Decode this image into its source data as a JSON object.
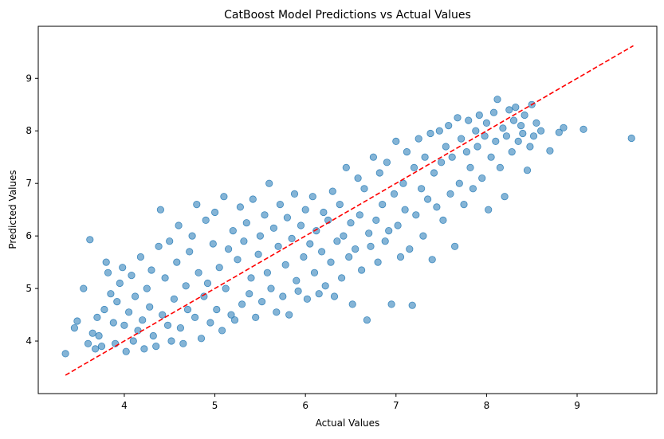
{
  "chart_data": {
    "type": "scatter",
    "title": "CatBoost Model Predictions vs Actual Values",
    "xlabel": "Actual Values",
    "ylabel": "Predicted Values",
    "xlim": [
      3.05,
      9.88
    ],
    "ylim": [
      3.0,
      9.99
    ],
    "xticks": [
      4,
      5,
      6,
      7,
      8,
      9
    ],
    "yticks": [
      4,
      5,
      6,
      7,
      8,
      9
    ],
    "grid": false,
    "legend": "none",
    "point_color": "#1f77b4",
    "point_alpha": 0.55,
    "reference_line": {
      "x": [
        3.35,
        9.62
      ],
      "y": [
        3.35,
        9.62
      ],
      "color": "#ff0000",
      "style": "dashed"
    },
    "series": [
      {
        "values_xy": [
          [
            3.35,
            3.76
          ],
          [
            3.45,
            4.25
          ],
          [
            3.48,
            4.38
          ],
          [
            3.55,
            5.0
          ],
          [
            3.6,
            3.95
          ],
          [
            3.62,
            5.93
          ],
          [
            3.65,
            4.15
          ],
          [
            3.68,
            3.85
          ],
          [
            3.7,
            4.45
          ],
          [
            3.72,
            4.1
          ],
          [
            3.75,
            3.9
          ],
          [
            3.78,
            4.6
          ],
          [
            3.8,
            5.5
          ],
          [
            3.82,
            5.3
          ],
          [
            3.85,
            4.9
          ],
          [
            3.88,
            4.35
          ],
          [
            3.9,
            3.95
          ],
          [
            3.92,
            4.75
          ],
          [
            3.95,
            5.1
          ],
          [
            3.98,
            5.4
          ],
          [
            4.0,
            4.3
          ],
          [
            4.02,
            3.8
          ],
          [
            4.05,
            4.55
          ],
          [
            4.08,
            5.25
          ],
          [
            4.1,
            4.0
          ],
          [
            4.12,
            4.85
          ],
          [
            4.15,
            4.2
          ],
          [
            4.18,
            5.6
          ],
          [
            4.2,
            4.4
          ],
          [
            4.22,
            3.85
          ],
          [
            4.25,
            5.0
          ],
          [
            4.28,
            4.65
          ],
          [
            4.3,
            5.35
          ],
          [
            4.32,
            4.1
          ],
          [
            4.35,
            3.9
          ],
          [
            4.38,
            5.8
          ],
          [
            4.4,
            6.5
          ],
          [
            4.42,
            4.5
          ],
          [
            4.45,
            5.2
          ],
          [
            4.48,
            4.3
          ],
          [
            4.5,
            5.9
          ],
          [
            4.52,
            4.0
          ],
          [
            4.55,
            4.8
          ],
          [
            4.58,
            5.5
          ],
          [
            4.6,
            6.2
          ],
          [
            4.62,
            4.25
          ],
          [
            4.65,
            3.95
          ],
          [
            4.68,
            5.05
          ],
          [
            4.7,
            4.6
          ],
          [
            4.72,
            5.7
          ],
          [
            4.75,
            6.0
          ],
          [
            4.78,
            4.45
          ],
          [
            4.8,
            6.6
          ],
          [
            4.82,
            5.3
          ],
          [
            4.85,
            4.05
          ],
          [
            4.88,
            4.85
          ],
          [
            4.9,
            6.3
          ],
          [
            4.92,
            5.1
          ],
          [
            4.95,
            4.35
          ],
          [
            4.98,
            5.85
          ],
          [
            5.0,
            6.45
          ],
          [
            5.02,
            4.6
          ],
          [
            5.05,
            5.4
          ],
          [
            5.08,
            4.2
          ],
          [
            5.1,
            6.75
          ],
          [
            5.12,
            5.0
          ],
          [
            5.15,
            5.75
          ],
          [
            5.18,
            4.5
          ],
          [
            5.2,
            6.1
          ],
          [
            5.22,
            4.4
          ],
          [
            5.25,
            5.55
          ],
          [
            5.28,
            6.55
          ],
          [
            5.3,
            4.7
          ],
          [
            5.32,
            5.9
          ],
          [
            5.35,
            6.25
          ],
          [
            5.38,
            4.9
          ],
          [
            5.4,
            5.2
          ],
          [
            5.42,
            6.7
          ],
          [
            5.45,
            4.45
          ],
          [
            5.48,
            5.65
          ],
          [
            5.5,
            6.0
          ],
          [
            5.52,
            4.75
          ],
          [
            5.55,
            6.4
          ],
          [
            5.58,
            5.3
          ],
          [
            5.6,
            7.0
          ],
          [
            5.62,
            5.0
          ],
          [
            5.65,
            6.15
          ],
          [
            5.68,
            4.55
          ],
          [
            5.7,
            5.8
          ],
          [
            5.72,
            6.6
          ],
          [
            5.75,
            4.85
          ],
          [
            5.78,
            5.45
          ],
          [
            5.8,
            6.35
          ],
          [
            5.82,
            4.5
          ],
          [
            5.85,
            5.95
          ],
          [
            5.88,
            6.8
          ],
          [
            5.9,
            5.15
          ],
          [
            5.92,
            4.95
          ],
          [
            5.95,
            6.2
          ],
          [
            5.98,
            5.6
          ],
          [
            6.0,
            6.5
          ],
          [
            6.02,
            4.8
          ],
          [
            6.05,
            5.85
          ],
          [
            6.08,
            6.75
          ],
          [
            6.1,
            5.3
          ],
          [
            6.12,
            6.1
          ],
          [
            6.15,
            4.9
          ],
          [
            6.18,
            5.7
          ],
          [
            6.2,
            6.45
          ],
          [
            6.22,
            5.05
          ],
          [
            6.25,
            6.3
          ],
          [
            6.28,
            5.5
          ],
          [
            6.3,
            6.85
          ],
          [
            6.32,
            4.85
          ],
          [
            6.35,
            5.9
          ],
          [
            6.38,
            6.6
          ],
          [
            6.4,
            5.2
          ],
          [
            6.42,
            6.0
          ],
          [
            6.45,
            7.3
          ],
          [
            6.48,
            5.6
          ],
          [
            6.5,
            6.25
          ],
          [
            6.52,
            4.7
          ],
          [
            6.55,
            5.75
          ],
          [
            6.58,
            7.1
          ],
          [
            6.6,
            6.4
          ],
          [
            6.62,
            5.35
          ],
          [
            6.65,
            6.9
          ],
          [
            6.68,
            4.4
          ],
          [
            6.7,
            6.05
          ],
          [
            6.72,
            5.8
          ],
          [
            6.75,
            7.5
          ],
          [
            6.78,
            6.3
          ],
          [
            6.8,
            5.5
          ],
          [
            6.82,
            7.2
          ],
          [
            6.85,
            6.6
          ],
          [
            6.88,
            5.9
          ],
          [
            6.9,
            7.4
          ],
          [
            6.92,
            6.1
          ],
          [
            6.95,
            4.7
          ],
          [
            6.98,
            6.8
          ],
          [
            7.0,
            7.8
          ],
          [
            7.02,
            6.2
          ],
          [
            7.05,
            5.6
          ],
          [
            7.08,
            7.0
          ],
          [
            7.1,
            6.5
          ],
          [
            7.12,
            7.6
          ],
          [
            7.15,
            5.75
          ],
          [
            7.18,
            4.68
          ],
          [
            7.2,
            7.3
          ],
          [
            7.22,
            6.4
          ],
          [
            7.25,
            7.85
          ],
          [
            7.28,
            6.9
          ],
          [
            7.3,
            6.0
          ],
          [
            7.32,
            7.5
          ],
          [
            7.35,
            6.7
          ],
          [
            7.38,
            7.95
          ],
          [
            7.4,
            5.55
          ],
          [
            7.42,
            7.2
          ],
          [
            7.45,
            6.55
          ],
          [
            7.48,
            8.0
          ],
          [
            7.5,
            7.4
          ],
          [
            7.52,
            6.3
          ],
          [
            7.55,
            7.7
          ],
          [
            7.58,
            8.1
          ],
          [
            7.6,
            6.8
          ],
          [
            7.62,
            7.5
          ],
          [
            7.65,
            5.8
          ],
          [
            7.68,
            8.25
          ],
          [
            7.7,
            7.0
          ],
          [
            7.72,
            7.85
          ],
          [
            7.75,
            6.6
          ],
          [
            7.78,
            7.6
          ],
          [
            7.8,
            8.2
          ],
          [
            7.82,
            7.3
          ],
          [
            7.85,
            6.9
          ],
          [
            7.88,
            8.0
          ],
          [
            7.9,
            7.7
          ],
          [
            7.92,
            8.3
          ],
          [
            7.95,
            7.1
          ],
          [
            7.98,
            7.9
          ],
          [
            8.0,
            8.15
          ],
          [
            8.02,
            6.5
          ],
          [
            8.05,
            7.5
          ],
          [
            8.08,
            8.35
          ],
          [
            8.1,
            7.8
          ],
          [
            8.12,
            8.6
          ],
          [
            8.15,
            7.3
          ],
          [
            8.18,
            8.05
          ],
          [
            8.2,
            6.75
          ],
          [
            8.22,
            7.9
          ],
          [
            8.25,
            8.4
          ],
          [
            8.28,
            7.6
          ],
          [
            8.3,
            8.2
          ],
          [
            8.32,
            8.45
          ],
          [
            8.35,
            7.8
          ],
          [
            8.38,
            8.1
          ],
          [
            8.4,
            7.95
          ],
          [
            8.42,
            8.3
          ],
          [
            8.45,
            7.25
          ],
          [
            8.48,
            7.7
          ],
          [
            8.5,
            8.5
          ],
          [
            8.52,
            7.9
          ],
          [
            8.55,
            8.15
          ],
          [
            8.6,
            8.0
          ],
          [
            8.7,
            7.62
          ],
          [
            8.8,
            7.97
          ],
          [
            8.85,
            8.06
          ],
          [
            9.07,
            8.03
          ],
          [
            9.6,
            7.86
          ]
        ]
      }
    ]
  }
}
